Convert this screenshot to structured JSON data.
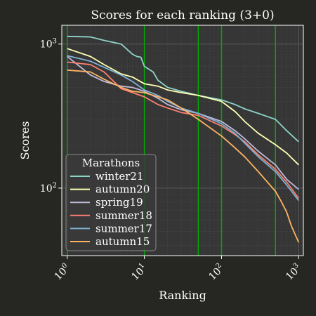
{
  "chart_data": {
    "type": "line",
    "title": "Scores for each ranking (3+0)",
    "xlabel": "Ranking",
    "ylabel": "Scores",
    "xscale": "log",
    "yscale": "log",
    "xlim": [
      0.85,
      1150
    ],
    "ylim": [
      34,
      1350
    ],
    "grid": true,
    "background_color": "#363636",
    "page_color": "#262622",
    "grid_color": "#555555",
    "x_ticks": [
      {
        "value": 1,
        "base": "10",
        "exp": "0"
      },
      {
        "value": 10,
        "base": "10",
        "exp": "1"
      },
      {
        "value": 100,
        "base": "10",
        "exp": "2"
      },
      {
        "value": 1000,
        "base": "10",
        "exp": "3"
      }
    ],
    "y_ticks": [
      {
        "value": 100,
        "base": "10",
        "exp": "2"
      },
      {
        "value": 1000,
        "base": "10",
        "exp": "3"
      }
    ],
    "vlines": {
      "color": "#00aa00",
      "x": [
        1,
        10,
        50,
        100,
        500
      ]
    },
    "legend": {
      "title": "Marathons",
      "position": "lower left"
    },
    "series": [
      {
        "name": "winter21",
        "color": "#8dd3c7",
        "x": [
          1,
          2,
          3,
          5,
          7,
          8,
          9,
          10,
          13,
          15,
          20,
          30,
          50,
          100,
          150,
          200,
          300,
          500,
          700,
          1000
        ],
        "y": [
          1130,
          1120,
          1060,
          1000,
          850,
          820,
          810,
          700,
          640,
          560,
          500,
          470,
          440,
          410,
          380,
          355,
          330,
          300,
          250,
          210
        ]
      },
      {
        "name": "autumn20",
        "color": "#ffffb3",
        "x": [
          1,
          2,
          3,
          5,
          7,
          10,
          15,
          20,
          30,
          50,
          100,
          150,
          200,
          300,
          500,
          700,
          1000
        ],
        "y": [
          930,
          820,
          720,
          620,
          590,
          530,
          510,
          480,
          460,
          440,
          400,
          340,
          290,
          240,
          200,
          175,
          145
        ]
      },
      {
        "name": "spring19",
        "color": "#bebada",
        "x": [
          1,
          2,
          3,
          5,
          7,
          10,
          15,
          20,
          30,
          50,
          100,
          150,
          200,
          300,
          500,
          700,
          1000
        ],
        "y": [
          820,
          610,
          550,
          510,
          500,
          470,
          420,
          380,
          350,
          330,
          290,
          250,
          220,
          180,
          145,
          115,
          98
        ]
      },
      {
        "name": "summer18",
        "color": "#fb8072",
        "x": [
          1,
          2,
          3,
          5,
          7,
          10,
          15,
          20,
          30,
          50,
          100,
          150,
          200,
          300,
          500,
          700,
          1000
        ],
        "y": [
          750,
          720,
          640,
          490,
          460,
          430,
          380,
          360,
          335,
          320,
          270,
          235,
          210,
          170,
          135,
          110,
          85
        ]
      },
      {
        "name": "summer17",
        "color": "#80b1d3",
        "x": [
          1,
          2,
          3,
          5,
          7,
          10,
          15,
          20,
          30,
          50,
          100,
          150,
          200,
          300,
          500,
          700,
          1000
        ],
        "y": [
          830,
          760,
          690,
          610,
          550,
          480,
          440,
          400,
          360,
          330,
          280,
          240,
          205,
          165,
          130,
          105,
          82
        ]
      },
      {
        "name": "autumn15",
        "color": "#fdb462",
        "x": [
          1,
          2,
          3,
          5,
          7,
          10,
          15,
          20,
          30,
          50,
          100,
          150,
          200,
          300,
          500,
          600,
          700,
          800,
          1000
        ],
        "y": [
          660,
          640,
          570,
          500,
          470,
          460,
          430,
          410,
          360,
          300,
          230,
          190,
          165,
          130,
          95,
          80,
          68,
          55,
          42
        ]
      }
    ]
  }
}
